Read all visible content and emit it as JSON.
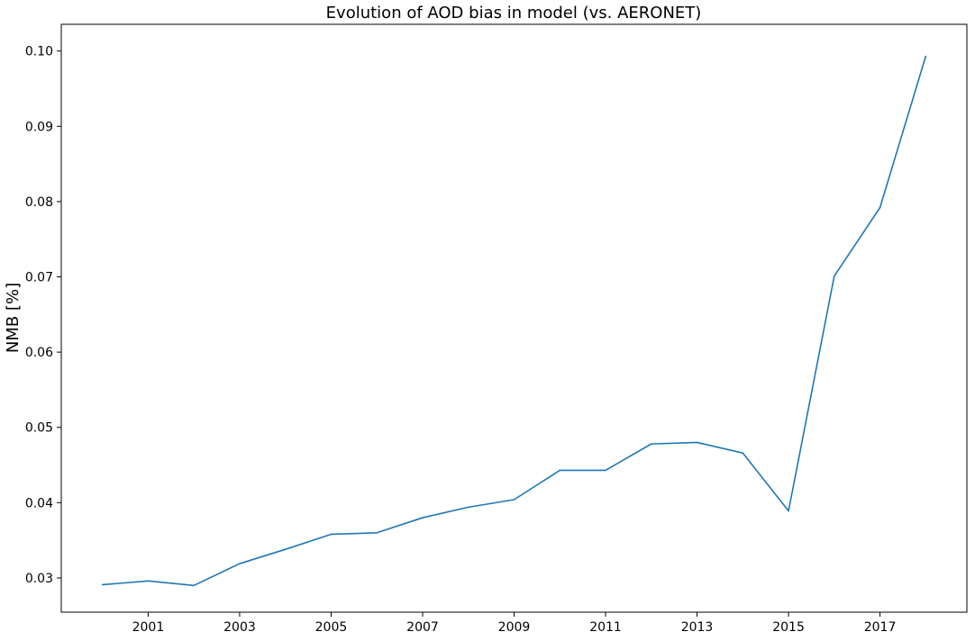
{
  "chart_data": {
    "type": "line",
    "title": "Evolution of AOD bias in model (vs. AERONET)",
    "xlabel": "",
    "ylabel": "NMB [%]",
    "xlim": [
      2000,
      2018
    ],
    "ylim": [
      0.029,
      0.1
    ],
    "xticks": [
      "2001",
      "2003",
      "2005",
      "2007",
      "2009",
      "2011",
      "2013",
      "2015",
      "2017"
    ],
    "yticks": [
      "0.03",
      "0.04",
      "0.05",
      "0.06",
      "0.07",
      "0.08",
      "0.09",
      "0.10"
    ],
    "grid": false,
    "legend": "none",
    "series": [
      {
        "color": "#1f77b4",
        "x": [
          2000,
          2001,
          2002,
          2003,
          2004,
          2005,
          2006,
          2007,
          2008,
          2009,
          2010,
          2011,
          2012,
          2013,
          2014,
          2015,
          2016,
          2017,
          2018
        ],
        "y": [
          0.0291,
          0.0296,
          0.029,
          0.0319,
          0.0338,
          0.0358,
          0.036,
          0.038,
          0.0394,
          0.0404,
          0.0443,
          0.0443,
          0.0478,
          0.048,
          0.0466,
          0.0389,
          0.0701,
          0.0792,
          0.0993
        ]
      }
    ]
  }
}
